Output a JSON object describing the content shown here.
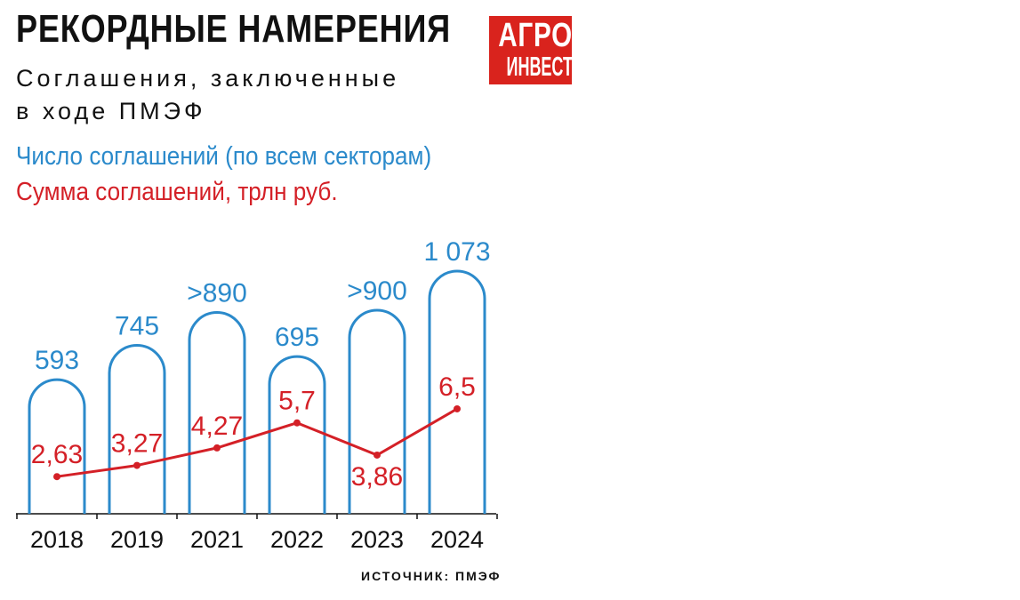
{
  "header": {
    "title": "РЕКОРДНЫЕ НАМЕРЕНИЯ",
    "subtitle_line1": "Соглашения, заключенные",
    "subtitle_line2": "в ходе ПМЭФ"
  },
  "logo": {
    "line1": "АГРО",
    "line2": "ИНВЕСТОР",
    "color": "#d9231d"
  },
  "source": "ИСТОЧНИК: ПМЭФ",
  "chart_data": {
    "type": "bar",
    "categories": [
      "2018",
      "2019",
      "2021",
      "2022",
      "2023",
      "2024"
    ],
    "series": [
      {
        "name": "Число соглашений (по всем секторам)",
        "values": [
          593,
          745,
          890,
          695,
          900,
          1073
        ],
        "labels": [
          "593",
          "745",
          ">890",
          "695",
          ">900",
          "1 073"
        ],
        "color": "#2b8acb",
        "mark": "bar"
      },
      {
        "name": "Сумма соглашений, трлн руб.",
        "values": [
          2.63,
          3.27,
          4.27,
          5.7,
          3.86,
          6.5
        ],
        "labels": [
          "2,63",
          "3,27",
          "4,27",
          "5,7",
          "3,86",
          "6,5"
        ],
        "color": "#d42027",
        "mark": "line"
      }
    ],
    "grid": false,
    "legend_placement": "top-left"
  }
}
